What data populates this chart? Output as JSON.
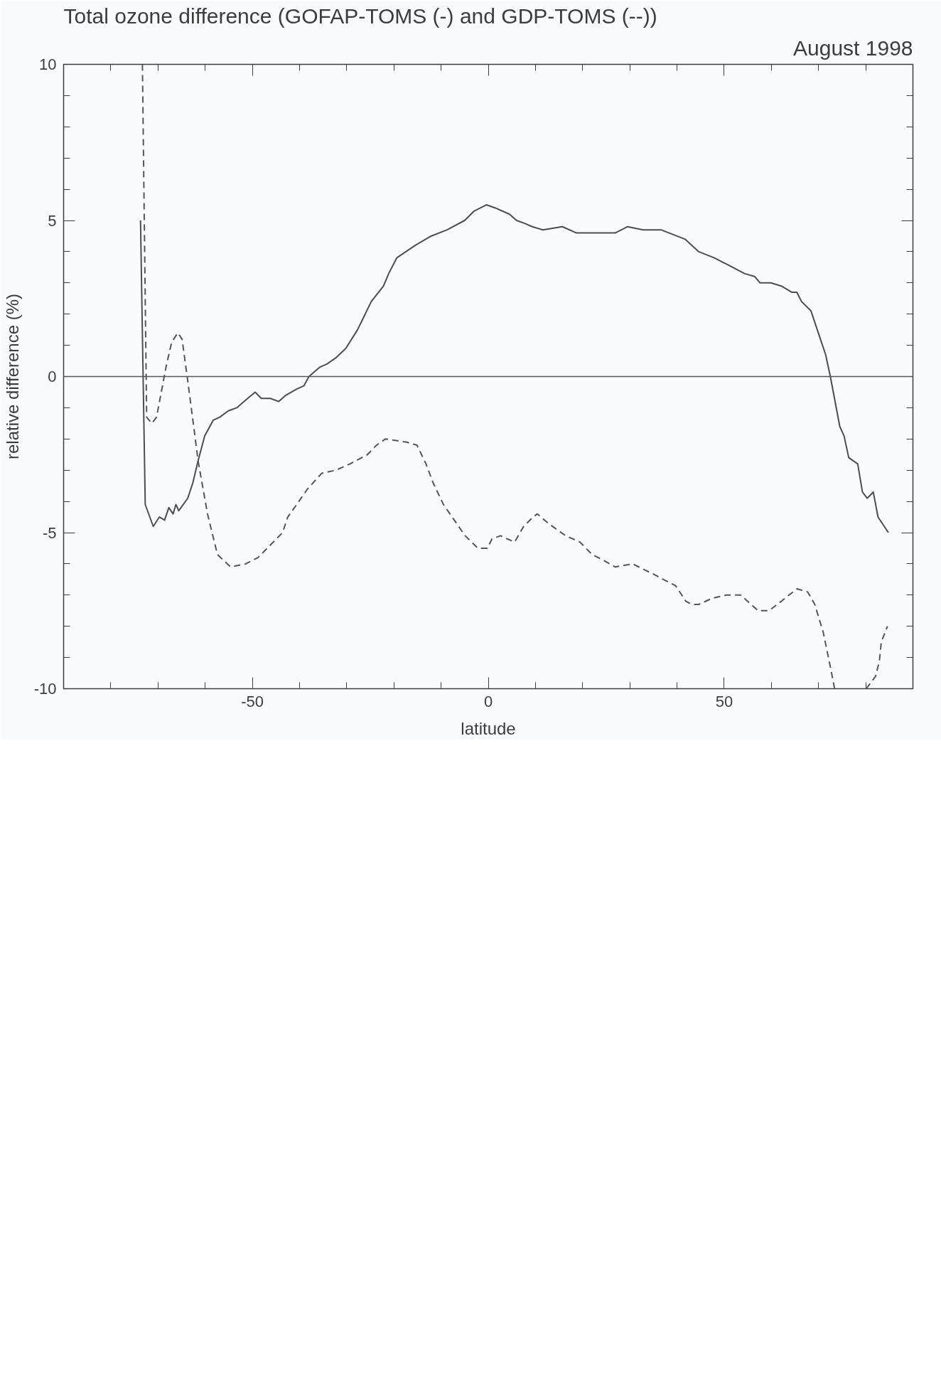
{
  "chart_data": {
    "type": "line",
    "title": "Total ozone difference (GOFAP-TOMS (-) and GDP-TOMS (--))",
    "subtitle": "August 1998",
    "xlabel": "latitude",
    "ylabel": "relative difference (%)",
    "xlim": [
      -90,
      90
    ],
    "ylim": [
      -10,
      10
    ],
    "xticks": [
      {
        "value": -80,
        "label": null
      },
      {
        "value": -70,
        "label": null
      },
      {
        "value": -60,
        "label": null
      },
      -50,
      {
        "value": -40,
        "label": null
      },
      {
        "value": -30,
        "label": null
      },
      {
        "value": -20,
        "label": null
      },
      {
        "value": -10,
        "label": null
      },
      0,
      {
        "value": 10,
        "label": null
      },
      {
        "value": 20,
        "label": null
      },
      {
        "value": 30,
        "label": null
      },
      {
        "value": 40,
        "label": null
      },
      50,
      {
        "value": 60,
        "label": null
      },
      {
        "value": 70,
        "label": null
      },
      {
        "value": 80,
        "label": null
      }
    ],
    "yticks": [
      -10,
      {
        "value": -9,
        "label": null
      },
      {
        "value": -8,
        "label": null
      },
      {
        "value": -7,
        "label": null
      },
      {
        "value": -6,
        "label": null
      },
      -5,
      {
        "value": -4,
        "label": null
      },
      {
        "value": -3,
        "label": null
      },
      {
        "value": -2,
        "label": null
      },
      {
        "value": -1,
        "label": null
      },
      0,
      {
        "value": 1,
        "label": null
      },
      {
        "value": 2,
        "label": null
      },
      {
        "value": 3,
        "label": null
      },
      {
        "value": 4,
        "label": null
      },
      5,
      {
        "value": 6,
        "label": null
      },
      {
        "value": 7,
        "label": null
      },
      {
        "value": 8,
        "label": null
      },
      {
        "value": 9,
        "label": null
      },
      10
    ],
    "ref_lines": [
      {
        "axis": "y",
        "value": 0,
        "color": "#555555",
        "line_style": "solid"
      }
    ],
    "series": [
      {
        "color": "#4d4d4d",
        "line_style": "solid",
        "x": [
          -73.7,
          -72.7,
          -71.0,
          -69.7,
          -68.6,
          -67.7,
          -66.8,
          -66.2,
          -65.6,
          -63.7,
          -62.6,
          -61.5,
          -60.1,
          -58.3,
          -56.9,
          -55.1,
          -53.3,
          -51.0,
          -49.4,
          -48.1,
          -46.2,
          -44.4,
          -42.9,
          -40.6,
          -39.1,
          -38.0,
          -35.7,
          -34.2,
          -32.3,
          -30.2,
          -27.7,
          -24.8,
          -22.2,
          -21.1,
          -19.4,
          -15.5,
          -12.1,
          -8.7,
          -5.0,
          -3.0,
          -0.4,
          1.5,
          4.5,
          6.0,
          7.8,
          9.3,
          11.6,
          15.7,
          18.7,
          20.9,
          23.9,
          26.9,
          29.5,
          32.8,
          36.6,
          41.7,
          44.6,
          47.9,
          50.5,
          54.3,
          56.5,
          57.6,
          59.9,
          62.1,
          64.3,
          65.4,
          66.4,
          68.4,
          71.5,
          72.5,
          74.5,
          75.4,
          76.4,
          78.3,
          79.3,
          80.3,
          81.6,
          82.6,
          84.8
        ],
        "values": [
          5.0,
          -4.1,
          -4.8,
          -4.5,
          -4.6,
          -4.2,
          -4.4,
          -4.1,
          -4.3,
          -3.9,
          -3.4,
          -2.7,
          -1.9,
          -1.4,
          -1.3,
          -1.1,
          -1.0,
          -0.7,
          -0.5,
          -0.7,
          -0.7,
          -0.8,
          -0.6,
          -0.4,
          -0.3,
          0.0,
          0.3,
          0.4,
          0.6,
          0.9,
          1.5,
          2.4,
          2.9,
          3.3,
          3.8,
          4.2,
          4.5,
          4.7,
          5.0,
          5.3,
          5.5,
          5.4,
          5.2,
          5.0,
          4.9,
          4.8,
          4.7,
          4.8,
          4.6,
          4.6,
          4.6,
          4.6,
          4.8,
          4.7,
          4.7,
          4.4,
          4.0,
          3.8,
          3.6,
          3.3,
          3.2,
          3.0,
          3.0,
          2.9,
          2.7,
          2.7,
          2.4,
          2.1,
          0.7,
          0.0,
          -1.6,
          -1.9,
          -2.6,
          -2.8,
          -3.7,
          -3.9,
          -3.7,
          -4.5,
          -5.0
        ]
      },
      {
        "color": "#555555",
        "line_style": "dashed",
        "x": [
          -73.3,
          -72.4,
          -71.3,
          -70.3,
          -68.3,
          -67.1,
          -65.8,
          -64.9,
          -63.9,
          -62.6,
          -61.5,
          -59.5,
          -57.4,
          -54.6,
          -51.4,
          -48.8,
          -46.2,
          -43.6,
          -42.5,
          -40.6,
          -38.3,
          -35.3,
          -32.3,
          -29.3,
          -25.6,
          -23.7,
          -21.8,
          -17.3,
          -15.1,
          -13.2,
          -11.7,
          -9.5,
          -7.2,
          -4.9,
          -2.2,
          -0.2,
          0.8,
          2.6,
          4.0,
          5.6,
          7.5,
          9.5,
          10.4,
          12.7,
          16.4,
          19.4,
          22.0,
          24.6,
          26.9,
          30.6,
          33.2,
          34.7,
          37.1,
          39.7,
          41.9,
          43.1,
          44.6,
          47.5,
          50.5,
          53.5,
          57.2,
          59.5,
          62.1,
          65.4,
          67.7,
          69.2,
          71.0,
          72.5,
          73.4,
          76.8,
          80.1,
          82.1,
          82.9,
          83.3,
          84.6
        ],
        "values": [
          10.0,
          -1.3,
          -1.5,
          -1.3,
          0.3,
          1.1,
          1.4,
          1.2,
          0.1,
          -1.4,
          -2.7,
          -4.4,
          -5.7,
          -6.1,
          -6.0,
          -5.8,
          -5.4,
          -5.0,
          -4.5,
          -4.1,
          -3.6,
          -3.1,
          -3.0,
          -2.8,
          -2.5,
          -2.2,
          -2.0,
          -2.1,
          -2.2,
          -2.8,
          -3.4,
          -4.1,
          -4.6,
          -5.1,
          -5.5,
          -5.5,
          -5.2,
          -5.1,
          -5.2,
          -5.3,
          -4.8,
          -4.5,
          -4.4,
          -4.7,
          -5.1,
          -5.3,
          -5.7,
          -5.9,
          -6.1,
          -6.0,
          -6.2,
          -6.3,
          -6.5,
          -6.7,
          -7.2,
          -7.3,
          -7.3,
          -7.1,
          -7.0,
          -7.0,
          -7.5,
          -7.5,
          -7.2,
          -6.8,
          -6.9,
          -7.3,
          -8.2,
          -9.3,
          -10.0,
          null,
          -10.0,
          -9.6,
          -9.1,
          -8.5,
          -8.0
        ]
      }
    ]
  }
}
